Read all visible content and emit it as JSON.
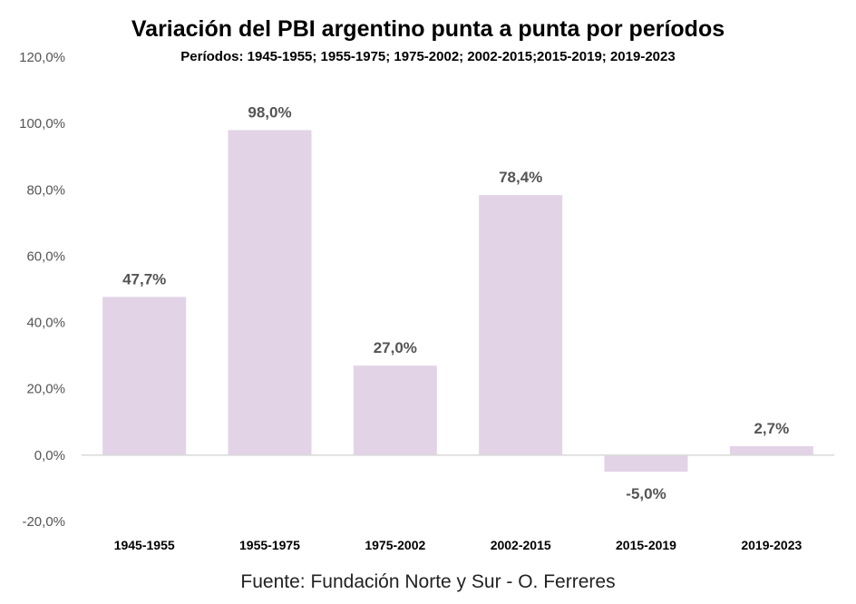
{
  "chart_data": {
    "type": "bar",
    "title": "Variación del PBI argentino punta a punta por períodos",
    "subtitle": "Períodos: 1945-1955; 1955-1975; 1975-2002; 2002-2015;2015-2019; 2019-2023",
    "source": "Fuente: Fundación Norte y Sur - O. Ferreres",
    "categories": [
      "1945-1955",
      "1955-1975",
      "1975-2002",
      "2002-2015",
      "2015-2019",
      "2019-2023"
    ],
    "values": [
      47.7,
      98.0,
      27.0,
      78.4,
      -5.0,
      2.7
    ],
    "data_labels": [
      "47,7%",
      "98,0%",
      "27,0%",
      "78,4%",
      "-5,0%",
      "2,7%"
    ],
    "y_ticks": [
      "-20,0%",
      "0,0%",
      "20,0%",
      "40,0%",
      "60,0%",
      "80,0%",
      "100,0%",
      "120,0%"
    ],
    "y_tick_values": [
      -20,
      0,
      20,
      40,
      60,
      80,
      100,
      120
    ],
    "ylim": [
      -20,
      120
    ],
    "grid": false,
    "xlabel": "",
    "ylabel": "",
    "colors": {
      "bar": "#e2d3e7",
      "axis": "#d9d9d9"
    }
  }
}
